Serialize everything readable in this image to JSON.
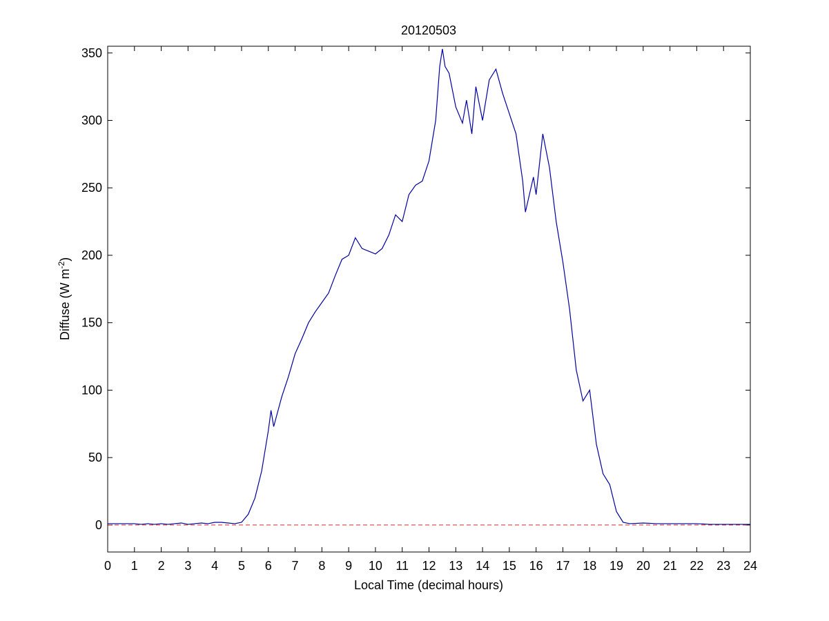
{
  "chart_data": {
    "type": "line",
    "title": "20120503",
    "xlabel": "Local Time (decimal hours)",
    "ylabel_parts": [
      "Diffuse (W m",
      "-2",
      ")"
    ],
    "xlim": [
      0,
      24
    ],
    "ylim": [
      -20,
      355
    ],
    "xticks": [
      0,
      1,
      2,
      3,
      4,
      5,
      6,
      7,
      8,
      9,
      10,
      11,
      12,
      13,
      14,
      15,
      16,
      17,
      18,
      19,
      20,
      21,
      22,
      23,
      24
    ],
    "yticks": [
      0,
      50,
      100,
      150,
      200,
      250,
      300,
      350
    ],
    "grid": false,
    "series": [
      {
        "color": "#0000a0",
        "x": [
          0,
          0.25,
          0.5,
          0.75,
          1,
          1.25,
          1.5,
          1.75,
          2,
          2.25,
          2.5,
          2.75,
          3,
          3.25,
          3.5,
          3.75,
          4,
          4.25,
          4.5,
          4.75,
          5,
          5.25,
          5.5,
          5.75,
          6,
          6.1,
          6.2,
          6.5,
          6.75,
          7,
          7.25,
          7.5,
          7.75,
          8,
          8.25,
          8.5,
          8.75,
          9,
          9.25,
          9.5,
          9.75,
          10,
          10.25,
          10.5,
          10.75,
          11,
          11.25,
          11.5,
          11.75,
          12,
          12.25,
          12.4,
          12.5,
          12.6,
          12.75,
          13,
          13.25,
          13.4,
          13.6,
          13.75,
          14,
          14.25,
          14.5,
          14.75,
          15,
          15.25,
          15.5,
          15.6,
          15.75,
          15.9,
          16,
          16.25,
          16.5,
          16.75,
          17,
          17.25,
          17.5,
          17.75,
          18,
          18.25,
          18.5,
          18.75,
          19,
          19.25,
          19.5,
          20,
          20.5,
          21,
          21.5,
          22,
          22.5,
          23,
          23.5,
          24
        ],
        "values": [
          1,
          1,
          1,
          1,
          1,
          0.5,
          1,
          0.5,
          1,
          0.5,
          1,
          1.5,
          0.5,
          1,
          1.5,
          1,
          2,
          2,
          1.5,
          1,
          2,
          8,
          20,
          40,
          70,
          85,
          73,
          95,
          110,
          127,
          138,
          150,
          158,
          165,
          172,
          185,
          197,
          200,
          213,
          205,
          203,
          201,
          205,
          215,
          230,
          225,
          245,
          252,
          255,
          270,
          300,
          340,
          353,
          340,
          335,
          310,
          298,
          315,
          290,
          325,
          300,
          330,
          338,
          320,
          305,
          290,
          255,
          232,
          245,
          258,
          245,
          290,
          265,
          225,
          195,
          160,
          115,
          92,
          100,
          60,
          38,
          30,
          10,
          2,
          1,
          1.5,
          1,
          1,
          1,
          1,
          0.5,
          0.5,
          0.5,
          0.5
        ]
      }
    ],
    "hlines": [
      {
        "value": 0,
        "color": "#d62728",
        "style": "dashed"
      }
    ]
  }
}
